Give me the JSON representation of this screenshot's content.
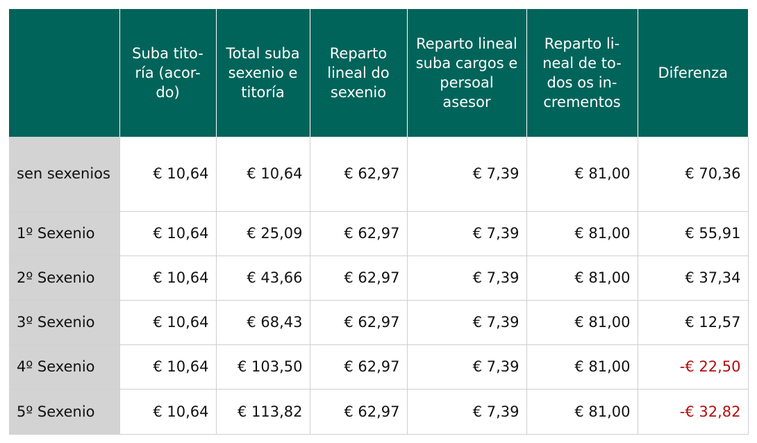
{
  "headers": [
    "",
    "Suba tito-\nría (acor-\ndo)",
    "Total suba\nsexenio e\ntitoría",
    "Reparto\nlineal do\nsexenio",
    "Reparto lineal\nsuba cargos e\npersoal asesor",
    "Reparto li-\nneal de to-\ndos os in-\ncrementos",
    "Diferenza"
  ],
  "rows": [
    {
      "label": "sen sexenios",
      "values": [
        "€ 10,64",
        "€ 10,64",
        "€ 62,97",
        "€ 7,39",
        "€ 81,00",
        "€ 70,36"
      ]
    },
    {
      "label": "1º Sexenio",
      "values": [
        "€ 10,64",
        "€ 25,09",
        "€ 62,97",
        "€ 7,39",
        "€ 81,00",
        "€ 55,91"
      ]
    },
    {
      "label": "2º Sexenio",
      "values": [
        "€ 10,64",
        "€ 43,66",
        "€ 62,97",
        "€ 7,39",
        "€ 81,00",
        "€ 37,34"
      ]
    },
    {
      "label": "3º Sexenio",
      "values": [
        "€ 10,64",
        "€ 68,43",
        "€ 62,97",
        "€ 7,39",
        "€ 81,00",
        "€ 12,57"
      ]
    },
    {
      "label": "4º Sexenio",
      "values": [
        "€ 10,64",
        "€ 103,50",
        "€ 62,97",
        "€ 7,39",
        "€ 81,00",
        "-€ 22,50"
      ]
    },
    {
      "label": "5º Sexenio",
      "values": [
        "€ 10,64",
        "€ 113,82",
        "€ 62,97",
        "€ 7,39",
        "€ 81,00",
        "-€ 32,82"
      ]
    }
  ],
  "colors": {
    "header_bg": "#00645a",
    "header_text": "#ffffff",
    "row_label_bg": "#d3d3d3",
    "negative_text": "#b50d0d",
    "border": "#cfcfcf"
  }
}
